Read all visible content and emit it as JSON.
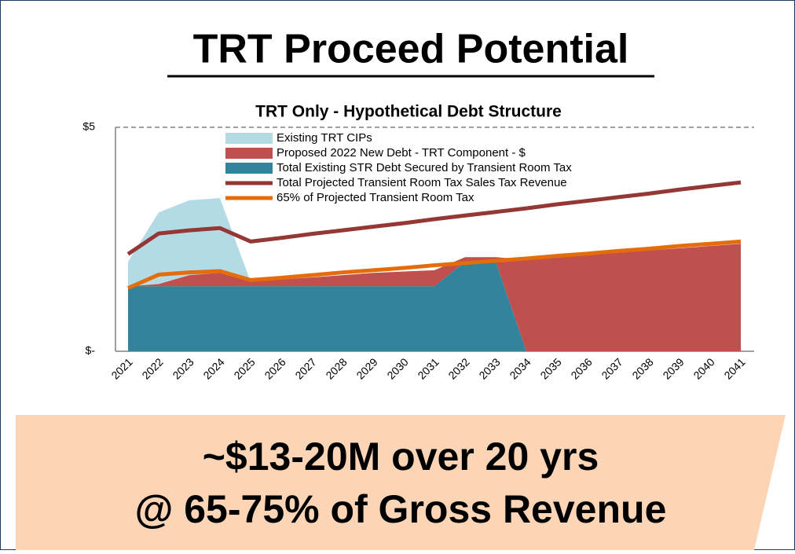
{
  "title": "TRT Proceed Potential",
  "banner": [
    "~$13-20M over 20 yrs",
    "@ 65-75% of Gross Revenue"
  ],
  "chart_data": {
    "type": "area",
    "title": "TRT Only - Hypothetical Debt Structure",
    "categories": [
      "2021",
      "2022",
      "2023",
      "2024",
      "2025",
      "2026",
      "2027",
      "2028",
      "2029",
      "2030",
      "2031",
      "2032",
      "2033",
      "2034",
      "2035",
      "2036",
      "2037",
      "2038",
      "2039",
      "2040",
      "2041"
    ],
    "ylim": [
      0,
      5
    ],
    "yticks": [
      {
        "value": 0,
        "label": "$-"
      },
      {
        "value": 5,
        "label": "$5"
      }
    ],
    "stacked": true,
    "series": [
      {
        "name": "Existing TRT CIPs",
        "kind": "area",
        "color": "#b3dbe6",
        "values": [
          0.55,
          1.6,
          1.67,
          1.67,
          0,
          0,
          0,
          0,
          0,
          0,
          0,
          0,
          0,
          0,
          0,
          0,
          0,
          0,
          0,
          0,
          0
        ]
      },
      {
        "name": "Proposed 2022 New Debt - TRT Component - $",
        "kind": "area",
        "color": "#c0504d",
        "values": [
          0,
          0.05,
          0.25,
          0.3,
          0.1,
          0.15,
          0.2,
          0.25,
          0.3,
          0.33,
          0.36,
          0.1,
          0.1,
          2.05,
          2.1,
          2.15,
          2.2,
          2.25,
          2.3,
          2.35,
          2.4
        ]
      },
      {
        "name": "Total Existing STR Debt Secured by Transient Room Tax",
        "kind": "area",
        "color": "#31849b",
        "values": [
          1.45,
          1.45,
          1.45,
          1.45,
          1.45,
          1.45,
          1.45,
          1.45,
          1.45,
          1.45,
          1.45,
          2.0,
          2.0,
          0,
          0,
          0,
          0,
          0,
          0,
          0,
          0
        ]
      },
      {
        "name": "Total Projected Transient Room Tax Sales Tax Revenue",
        "kind": "line",
        "color": "#953735",
        "values": [
          2.17,
          2.63,
          2.7,
          2.75,
          2.45,
          2.53,
          2.62,
          2.7,
          2.78,
          2.86,
          2.95,
          3.03,
          3.11,
          3.19,
          3.28,
          3.36,
          3.44,
          3.52,
          3.61,
          3.69,
          3.77
        ]
      },
      {
        "name": "65% of Projected Transient Room Tax",
        "kind": "line",
        "color": "#e46c0a",
        "values": [
          1.41,
          1.71,
          1.76,
          1.79,
          1.59,
          1.64,
          1.7,
          1.76,
          1.81,
          1.86,
          1.92,
          1.97,
          2.02,
          2.07,
          2.13,
          2.18,
          2.24,
          2.29,
          2.35,
          2.4,
          2.45
        ]
      }
    ]
  }
}
